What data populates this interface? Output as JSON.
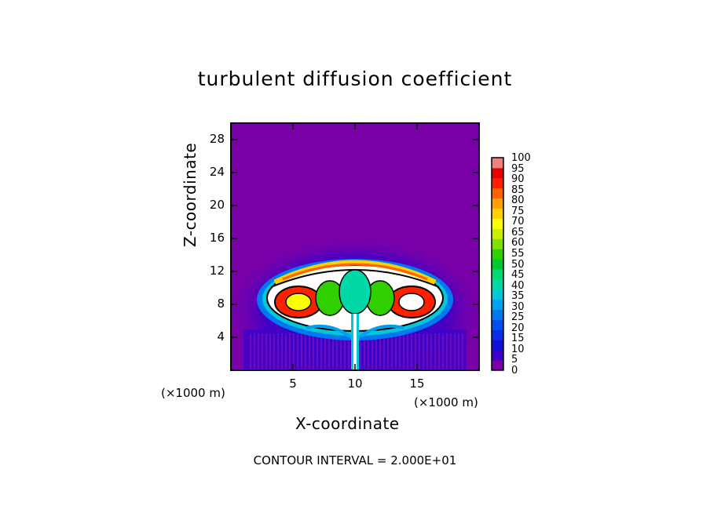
{
  "chart_data": {
    "type": "heatmap",
    "title": "turbulent diffusion coefficient",
    "xlabel": "X-coordinate",
    "ylabel": "Z-coordinate",
    "x_unit": "(×1000 m)",
    "y_unit": "(×1000 m)",
    "xlim": [
      0,
      20
    ],
    "ylim": [
      0,
      30
    ],
    "x_ticks": [
      "5",
      "10",
      "15"
    ],
    "x_tick_values": [
      5,
      10,
      15
    ],
    "y_ticks": [
      "4",
      "8",
      "12",
      "16",
      "20",
      "24",
      "28"
    ],
    "y_tick_values": [
      4,
      8,
      12,
      16,
      20,
      24,
      28
    ],
    "colorbar": {
      "levels": [
        0,
        5,
        10,
        15,
        20,
        25,
        30,
        35,
        40,
        45,
        50,
        55,
        60,
        65,
        70,
        75,
        80,
        85,
        90,
        95,
        100
      ],
      "labels": [
        "100",
        "95",
        "90",
        "85",
        "80",
        "75",
        "70",
        "65",
        "60",
        "55",
        "50",
        "45",
        "40",
        "35",
        "30",
        "25",
        "20",
        "15",
        "10",
        "5",
        "0"
      ],
      "colors": [
        "#7a00a8",
        "#3e00c8",
        "#1010d8",
        "#0a2ce8",
        "#0050f0",
        "#0078f0",
        "#00a0f0",
        "#00c8d8",
        "#00d8a8",
        "#00d870",
        "#00c830",
        "#30d000",
        "#80e000",
        "#c8f000",
        "#ffff00",
        "#ffd000",
        "#ffa000",
        "#ff6000",
        "#ff2000",
        "#e80000",
        "#f08080"
      ]
    },
    "background_value": 0,
    "feature": "diffusion maximum in an elliptical region centered near x=10, z=9, with a narrow vertical plume along x=10 from the surface",
    "contour_interval": "2.000E+01"
  },
  "footer": {
    "text": "CONTOUR INTERVAL = 2.000E+01"
  }
}
